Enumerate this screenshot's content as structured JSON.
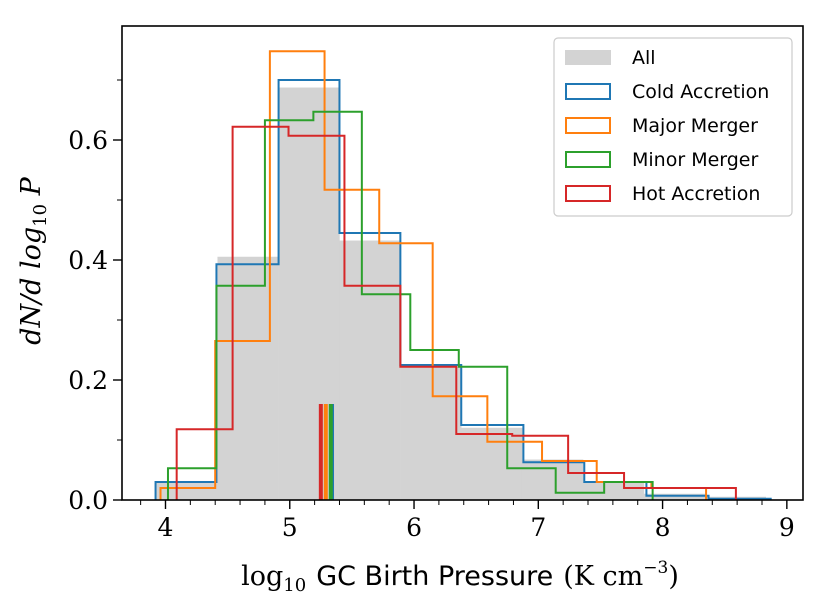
{
  "chart_data": {
    "type": "histogram",
    "xlabel_math": "log",
    "xlabel_sub": "10",
    "xlabel_text": "GC Birth Pressure",
    "xlabel_unit_open": "(K cm",
    "xlabel_unit_exp": "−3",
    "xlabel_unit_close": ")",
    "ylabel": "dN/d log",
    "ylabel_sub": "10",
    "ylabel_tail": " P",
    "xlim": [
      3.65,
      9.13
    ],
    "ylim": [
      0.0,
      0.79
    ],
    "x_ticks": [
      4,
      5,
      6,
      7,
      8,
      9
    ],
    "x_tick_labels": [
      "4",
      "5",
      "6",
      "7",
      "8",
      "9"
    ],
    "x_minor_step": 0.2,
    "y_ticks": [
      0.0,
      0.2,
      0.4,
      0.6
    ],
    "y_tick_labels": [
      "0.0",
      "0.2",
      "0.4",
      "0.6"
    ],
    "legend_position": "top-right",
    "series": [
      {
        "name": "All",
        "style": "filled",
        "color": "#d3d3d3",
        "edges": [
          3.93,
          4.42,
          4.91,
          5.4,
          5.89,
          6.38,
          6.87,
          7.36,
          7.85,
          8.34,
          8.83
        ],
        "values": [
          0.03,
          0.405,
          0.687,
          0.432,
          0.222,
          0.12,
          0.067,
          0.03,
          0.01,
          0.005
        ],
        "median": null
      },
      {
        "name": "Cold Accretion",
        "style": "step",
        "color": "#1f77b4",
        "edges": [
          3.92,
          4.41,
          4.91,
          5.4,
          5.89,
          6.38,
          6.88,
          7.37,
          7.87,
          8.37,
          8.87
        ],
        "values": [
          0.03,
          0.393,
          0.7,
          0.445,
          0.225,
          0.125,
          0.063,
          0.03,
          0.007,
          0.002
        ],
        "median": 5.34
      },
      {
        "name": "Major Merger",
        "style": "step",
        "color": "#ff7f0e",
        "edges": [
          3.96,
          4.4,
          4.84,
          5.28,
          5.72,
          6.15,
          6.59,
          7.03,
          7.47,
          7.91,
          8.35
        ],
        "values": [
          0.02,
          0.265,
          0.748,
          0.517,
          0.428,
          0.173,
          0.097,
          0.065,
          0.03,
          0.02
        ],
        "median": 5.29
      },
      {
        "name": "Minor Merger",
        "style": "step",
        "color": "#2ca02c",
        "edges": [
          4.02,
          4.41,
          4.8,
          5.19,
          5.58,
          5.97,
          6.36,
          6.75,
          7.14,
          7.53,
          7.92
        ],
        "values": [
          0.053,
          0.357,
          0.633,
          0.647,
          0.343,
          0.25,
          0.222,
          0.053,
          0.012,
          0.03
        ],
        "median": 5.33
      },
      {
        "name": "Hot Accretion",
        "style": "step",
        "color": "#d62728",
        "edges": [
          4.09,
          4.54,
          4.99,
          5.44,
          5.89,
          6.34,
          6.79,
          7.24,
          7.69,
          8.14,
          8.59
        ],
        "values": [
          0.118,
          0.622,
          0.607,
          0.357,
          0.222,
          0.11,
          0.107,
          0.045,
          0.02,
          0.02
        ],
        "median": 5.25
      }
    ]
  }
}
